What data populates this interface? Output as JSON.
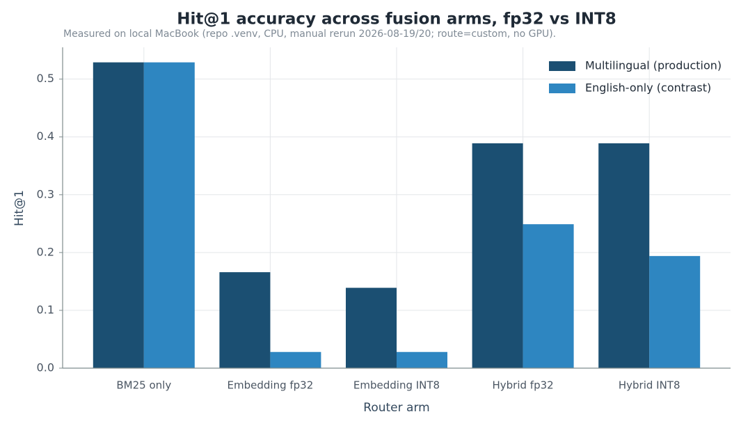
{
  "chart_data": {
    "type": "bar",
    "title": "Hit@1 accuracy across fusion arms, fp32 vs INT8",
    "subtitle": "Measured on local MacBook (repo .venv, CPU, manual rerun 2026-08-19/20; route=custom, no GPU).",
    "x_label": "Router arm",
    "y_label": "Hit@1",
    "categories": [
      "BM25 only",
      "Embedding fp32",
      "Embedding INT8",
      "Hybrid fp32",
      "Hybrid INT8"
    ],
    "series": [
      {
        "name": "Multilingual (production)",
        "color": "#1b4f72",
        "values": [
          0.529,
          0.166,
          0.139,
          0.389,
          0.389
        ]
      },
      {
        "name": "English-only (contrast)",
        "color": "#2e86c1",
        "values": [
          0.529,
          0.028,
          0.028,
          0.249,
          0.194
        ]
      }
    ],
    "ylim": [
      0,
      0.555
    ],
    "yticks": [
      {
        "value": 0,
        "label": "0.0"
      },
      0.1,
      0.2,
      0.3,
      0.4,
      0.5
    ],
    "grid": true,
    "legend": "upper right"
  }
}
